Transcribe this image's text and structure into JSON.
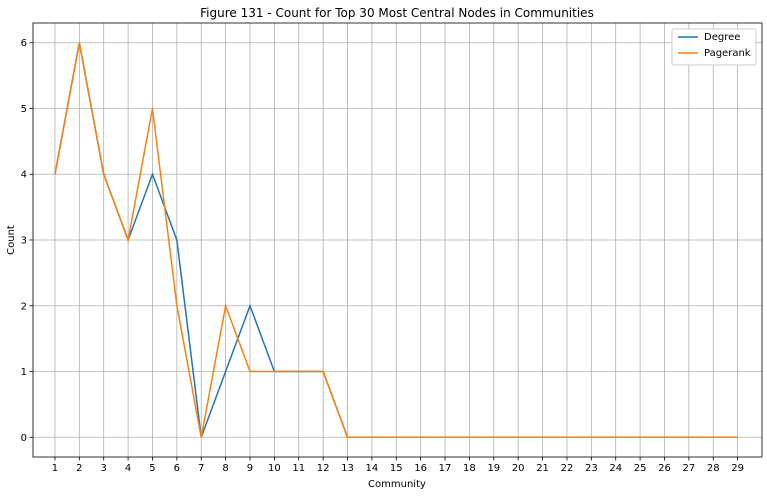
{
  "chart_data": {
    "type": "line",
    "title": "Figure 131 - Count for Top 30 Most Central Nodes in Communities",
    "xlabel": "Community",
    "ylabel": "Count",
    "x": [
      1,
      2,
      3,
      4,
      5,
      6,
      7,
      8,
      9,
      10,
      11,
      12,
      13,
      14,
      15,
      16,
      17,
      18,
      19,
      20,
      21,
      22,
      23,
      24,
      25,
      26,
      27,
      28,
      29
    ],
    "xlim": [
      0.1,
      30
    ],
    "ylim": [
      -0.3,
      6.3
    ],
    "yticks": [
      0,
      1,
      2,
      3,
      4,
      5,
      6
    ],
    "grid": true,
    "legend_position": "top-right",
    "series": [
      {
        "name": "Degree",
        "color": "#1f77b4",
        "values": [
          4,
          6,
          4,
          3,
          4,
          3,
          0,
          1,
          2,
          1,
          1,
          1,
          0,
          0,
          0,
          0,
          0,
          0,
          0,
          0,
          0,
          0,
          0,
          0,
          0,
          0,
          0,
          0,
          0
        ]
      },
      {
        "name": "Pagerank",
        "color": "#ff7f0e",
        "values": [
          4,
          6,
          4,
          3,
          5,
          2,
          0,
          2,
          1,
          1,
          1,
          1,
          0,
          0,
          0,
          0,
          0,
          0,
          0,
          0,
          0,
          0,
          0,
          0,
          0,
          0,
          0,
          0,
          0
        ]
      }
    ]
  }
}
